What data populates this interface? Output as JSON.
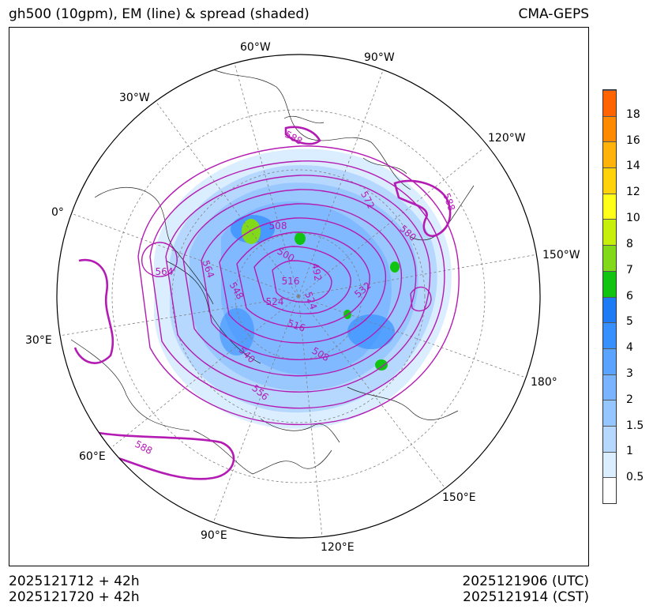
{
  "header": {
    "title_left": "gh500 (10gpm), EM (line) & spread (shaded)",
    "title_right": "CMA-GEPS"
  },
  "map": {
    "projection": "north-polar-stereographic",
    "lon_labels": [
      "60°W",
      "90°W",
      "120°W",
      "150°W",
      "180°",
      "150°E",
      "120°E",
      "90°E",
      "60°E",
      "30°E",
      "0°",
      "30°W"
    ],
    "contour_labels": [
      "588",
      "572",
      "580",
      "508",
      "500",
      "492",
      "564",
      "564",
      "548",
      "524",
      "516",
      "524",
      "532",
      "516",
      "508",
      "540",
      "556",
      "588",
      "588"
    ],
    "colors": {
      "contour": "#b31bb3",
      "coast": "#222222",
      "grid": "#808080"
    }
  },
  "colorbar": {
    "ticks": [
      "0.5",
      "1",
      "1.5",
      "2",
      "3",
      "4",
      "5",
      "6",
      "7",
      "8",
      "10",
      "12",
      "14",
      "16",
      "18"
    ],
    "colors": [
      "#ffffff",
      "#dbeeff",
      "#b6d8ff",
      "#96c6ff",
      "#78b4ff",
      "#5aa4ff",
      "#3890ff",
      "#1c7bf5",
      "#12c412",
      "#82d91a",
      "#c6ef0c",
      "#ffff1a",
      "#ffd20a",
      "#ffb20a",
      "#ff8a00",
      "#ff6400"
    ]
  },
  "footer": {
    "init_utc": "2025121712 + 42h",
    "init_cst": "2025121720 + 42h",
    "valid_utc": "2025121906 (UTC)",
    "valid_cst": "2025121914 (CST)"
  }
}
